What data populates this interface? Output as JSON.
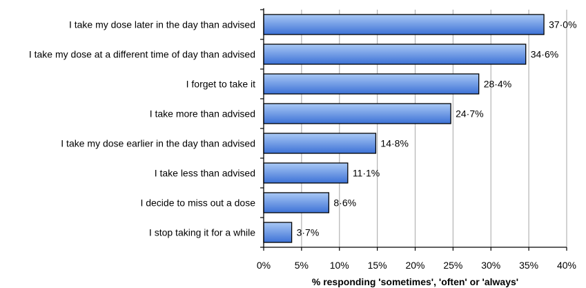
{
  "chart_data": {
    "type": "bar",
    "orientation": "horizontal",
    "categories": [
      "I take my dose later in the day than advised",
      "I take my dose at a different time of day than advised",
      "I forget to take it",
      "I take more than advised",
      "I take my dose earlier in the day than advised",
      "I take less than advised",
      "I decide to miss out a dose",
      "I stop taking it for a while"
    ],
    "values": [
      37.0,
      34.6,
      28.4,
      24.7,
      14.8,
      11.1,
      8.6,
      3.7
    ],
    "data_labels": [
      "37·0%",
      "34·6%",
      "28·4%",
      "24·7%",
      "14·8%",
      "11·1%",
      "8·6%",
      "3·7%"
    ],
    "xlabel": "% responding 'sometimes', 'often' or 'always'",
    "ylabel": "",
    "xlim": [
      0,
      40
    ],
    "x_ticks": [
      0,
      5,
      10,
      15,
      20,
      25,
      30,
      35,
      40
    ],
    "x_tick_labels": [
      "0%",
      "5%",
      "10%",
      "15%",
      "20%",
      "25%",
      "30%",
      "35%",
      "40%"
    ],
    "grid": "vertical",
    "legend": "none",
    "colors": {
      "bar_top": "#a9c8f5",
      "bar_bottom": "#3d72d6",
      "bar_stroke": "#000000",
      "grid": "#b3b3b3",
      "axis": "#000000"
    }
  }
}
